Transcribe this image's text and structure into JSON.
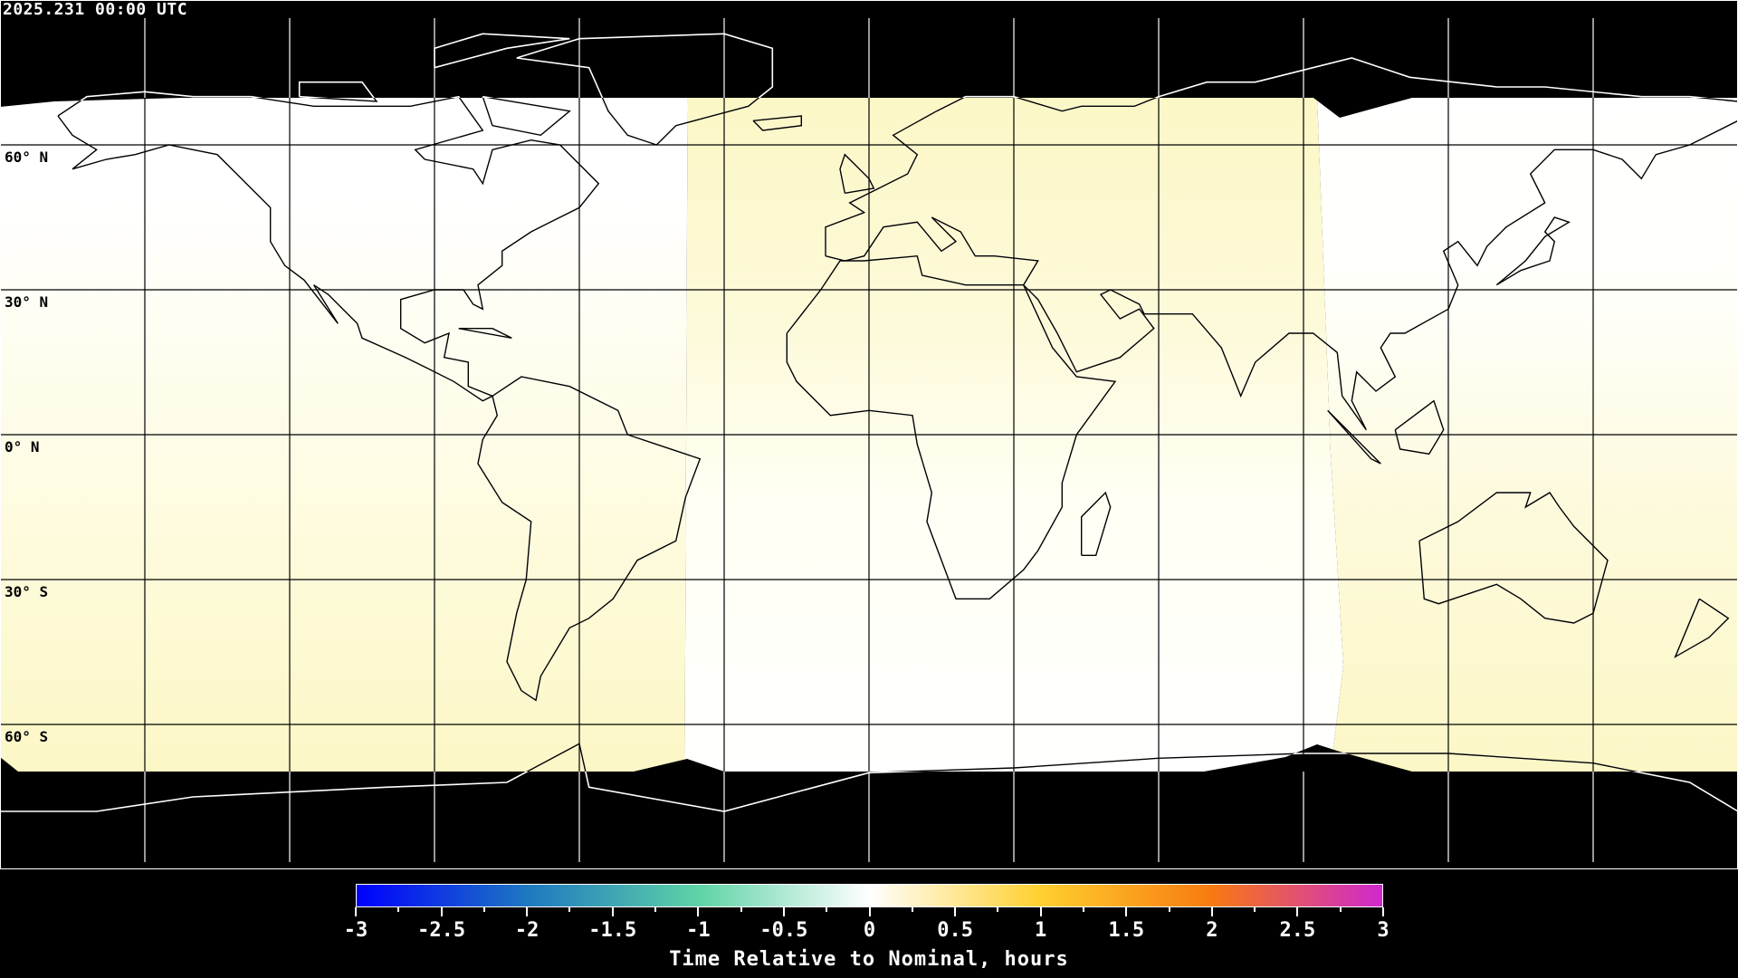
{
  "header": {
    "timestamp": "2025.231 00:00 UTC"
  },
  "map": {
    "projection": "equirectangular",
    "lat_labels": [
      "60° N",
      "30° N",
      "0° N",
      "30° S",
      "60° S"
    ],
    "grid_spacing_degrees": 30,
    "colors": {
      "background": "#000000",
      "zero": "#ffffff",
      "positive_small": "#fcf8c6",
      "grid": "#000000"
    }
  },
  "colorbar": {
    "title": "Time Relative to Nominal, hours",
    "ticks": [
      "-3",
      "-2.5",
      "-2",
      "-1.5",
      "-1",
      "-0.5",
      "0",
      "0.5",
      "1",
      "1.5",
      "2",
      "2.5",
      "3"
    ],
    "range": [
      -3,
      3
    ],
    "colors": [
      "#0000ff",
      "#1f78c0",
      "#5fd3a6",
      "#ffffff",
      "#ffd030",
      "#f77a10",
      "#cf28cf"
    ]
  }
}
